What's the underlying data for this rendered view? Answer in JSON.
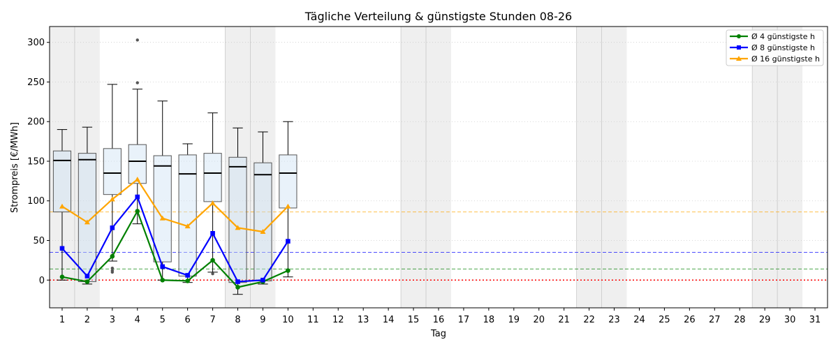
{
  "chart_data": {
    "type": "box",
    "title": "Tägliche Verteilung & günstigste Stunden 08-26",
    "xlabel": "Tag",
    "ylabel": "Strompreis [€/MWh]",
    "xlim": [
      0.5,
      31.5
    ],
    "ylim": [
      -35,
      320
    ],
    "x_ticks": [
      1,
      2,
      3,
      4,
      5,
      6,
      7,
      8,
      9,
      10,
      11,
      12,
      13,
      14,
      15,
      16,
      17,
      18,
      19,
      20,
      21,
      22,
      23,
      24,
      25,
      26,
      27,
      28,
      29,
      30,
      31
    ],
    "y_ticks": [
      0,
      50,
      100,
      150,
      200,
      250,
      300
    ],
    "grid": "horizontal dotted",
    "weekend_days": [
      1,
      2,
      8,
      9,
      15,
      16,
      22,
      23,
      29,
      30
    ],
    "boxes": [
      {
        "day": 1,
        "q1": 86,
        "median": 151,
        "q3": 163,
        "whisker_low": 0,
        "whisker_high": 190,
        "outliers": []
      },
      {
        "day": 2,
        "q1": -2,
        "median": 152,
        "q3": 160,
        "whisker_low": -5,
        "whisker_high": 193,
        "outliers": []
      },
      {
        "day": 3,
        "q1": 108,
        "median": 135,
        "q3": 166,
        "whisker_low": 24,
        "whisker_high": 247,
        "outliers": [
          10,
          12,
          15
        ]
      },
      {
        "day": 4,
        "q1": 122,
        "median": 150,
        "q3": 171,
        "whisker_low": 71,
        "whisker_high": 241,
        "outliers": [
          249,
          303
        ]
      },
      {
        "day": 5,
        "q1": 23,
        "median": 144,
        "q3": 157,
        "whisker_low": 0,
        "whisker_high": 226,
        "outliers": []
      },
      {
        "day": 6,
        "q1": 5,
        "median": 134,
        "q3": 158,
        "whisker_low": -3,
        "whisker_high": 172,
        "outliers": []
      },
      {
        "day": 7,
        "q1": 99,
        "median": 135,
        "q3": 160,
        "whisker_low": 10,
        "whisker_high": 211,
        "outliers": [
          8
        ]
      },
      {
        "day": 8,
        "q1": -3,
        "median": 143,
        "q3": 155,
        "whisker_low": -18,
        "whisker_high": 192,
        "outliers": []
      },
      {
        "day": 9,
        "q1": -1,
        "median": 133,
        "q3": 148,
        "whisker_low": -5,
        "whisker_high": 187,
        "outliers": []
      },
      {
        "day": 10,
        "q1": 91,
        "median": 135,
        "q3": 158,
        "whisker_low": 4,
        "whisker_high": 200,
        "outliers": []
      }
    ],
    "series": [
      {
        "name": "Ø 4 günstigste h",
        "color": "#008000",
        "marker": "circle",
        "x": [
          1,
          2,
          3,
          4,
          5,
          6,
          7,
          8,
          9,
          10
        ],
        "values": [
          4,
          -2,
          30,
          87,
          0,
          -1,
          25,
          -9,
          -2,
          12
        ],
        "mean": 14
      },
      {
        "name": "Ø 8 günstigste h",
        "color": "#0000ff",
        "marker": "square",
        "x": [
          1,
          2,
          3,
          4,
          5,
          6,
          7,
          8,
          9,
          10
        ],
        "values": [
          40,
          5,
          66,
          105,
          17,
          6,
          59,
          -2,
          0,
          49
        ],
        "mean": 35
      },
      {
        "name": "Ø 16 günstigste h",
        "color": "#ffa500",
        "marker": "triangle",
        "x": [
          1,
          2,
          3,
          4,
          5,
          6,
          7,
          8,
          9,
          10
        ],
        "values": [
          93,
          73,
          102,
          127,
          78,
          68,
          97,
          66,
          61,
          93
        ],
        "mean": 86
      }
    ],
    "zero_line_color": "#ff0000",
    "box_fill": "#cfe2f3",
    "weekend_color": "#cccccc",
    "legend_position": "top-right"
  }
}
